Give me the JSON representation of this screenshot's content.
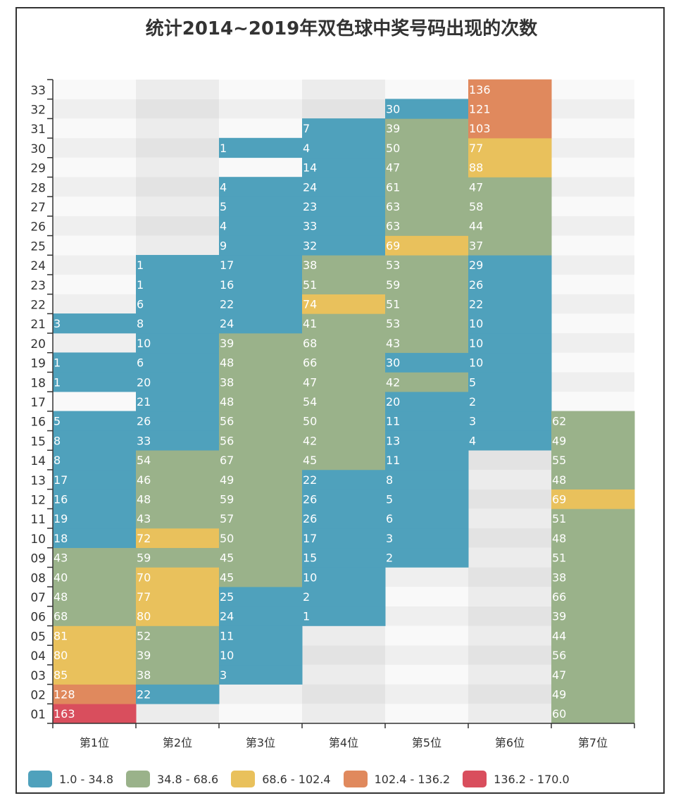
{
  "chart_data": {
    "type": "heatmap",
    "title": "统计2014~2019年双色球中奖号码出现的次数",
    "xlabel": "",
    "ylabel": "",
    "x_categories": [
      "第1位",
      "第2位",
      "第3位",
      "第4位",
      "第5位",
      "第6位",
      "第7位"
    ],
    "y_categories": [
      "01",
      "02",
      "03",
      "04",
      "05",
      "06",
      "07",
      "08",
      "09",
      "10",
      "11",
      "12",
      "13",
      "14",
      "15",
      "16",
      "17",
      "18",
      "19",
      "20",
      "21",
      "22",
      "23",
      "24",
      "25",
      "26",
      "27",
      "28",
      "29",
      "30",
      "31",
      "32",
      "33"
    ],
    "visual_map": {
      "min": 1.0,
      "max": 170.0,
      "pieces": [
        {
          "label": "1.0 - 34.8",
          "min": 1.0,
          "max": 34.8,
          "color": "#4fa1bc"
        },
        {
          "label": "34.8 - 68.6",
          "min": 34.8,
          "max": 68.6,
          "color": "#9ab28a"
        },
        {
          "label": "68.6 - 102.4",
          "min": 68.6,
          "max": 102.4,
          "color": "#e9c15c"
        },
        {
          "label": "102.4 - 136.2",
          "min": 102.4,
          "max": 136.2,
          "color": "#e0895d"
        },
        {
          "label": "136.2 - 170.0",
          "min": 136.2,
          "max": 170.0,
          "color": "#d94e5d"
        }
      ],
      "legend_position": "bottom-left"
    },
    "series": [
      {
        "name": "第1位",
        "values": [
          163,
          128,
          85,
          80,
          81,
          68,
          48,
          40,
          43,
          18,
          19,
          16,
          17,
          8,
          8,
          5,
          null,
          1,
          1,
          null,
          3,
          null,
          null,
          null,
          null,
          null,
          null,
          null,
          null,
          null,
          null,
          null,
          null
        ]
      },
      {
        "name": "第2位",
        "values": [
          null,
          22,
          38,
          39,
          52,
          80,
          77,
          70,
          59,
          72,
          43,
          48,
          46,
          54,
          33,
          26,
          21,
          20,
          6,
          10,
          8,
          6,
          1,
          1,
          null,
          null,
          null,
          null,
          null,
          null,
          null,
          null,
          null
        ]
      },
      {
        "name": "第3位",
        "values": [
          null,
          null,
          3,
          10,
          11,
          24,
          25,
          45,
          45,
          50,
          57,
          59,
          49,
          67,
          56,
          56,
          48,
          38,
          48,
          39,
          24,
          22,
          16,
          17,
          9,
          4,
          5,
          4,
          null,
          1,
          null,
          null,
          null
        ]
      },
      {
        "name": "第4位",
        "values": [
          null,
          null,
          null,
          null,
          null,
          1,
          2,
          10,
          15,
          17,
          26,
          26,
          22,
          45,
          42,
          50,
          54,
          47,
          66,
          68,
          41,
          74,
          51,
          38,
          32,
          33,
          23,
          24,
          14,
          4,
          7,
          null,
          null
        ]
      },
      {
        "name": "第5位",
        "values": [
          null,
          null,
          null,
          null,
          null,
          null,
          null,
          null,
          2,
          3,
          6,
          5,
          8,
          11,
          13,
          11,
          20,
          42,
          30,
          43,
          53,
          51,
          59,
          53,
          69,
          63,
          63,
          61,
          47,
          50,
          39,
          30,
          null
        ]
      },
      {
        "name": "第6位",
        "values": [
          null,
          null,
          null,
          null,
          null,
          null,
          null,
          null,
          null,
          null,
          null,
          null,
          null,
          null,
          4,
          3,
          2,
          5,
          10,
          10,
          10,
          22,
          26,
          29,
          37,
          44,
          58,
          47,
          88,
          77,
          103,
          121,
          136
        ]
      },
      {
        "name": "第7位",
        "values": [
          60,
          49,
          47,
          56,
          44,
          39,
          66,
          38,
          51,
          48,
          51,
          69,
          48,
          55,
          49,
          62,
          null,
          null,
          null,
          null,
          null,
          null,
          null,
          null,
          null,
          null,
          null,
          null,
          null,
          null,
          null,
          null,
          null
        ]
      }
    ]
  }
}
